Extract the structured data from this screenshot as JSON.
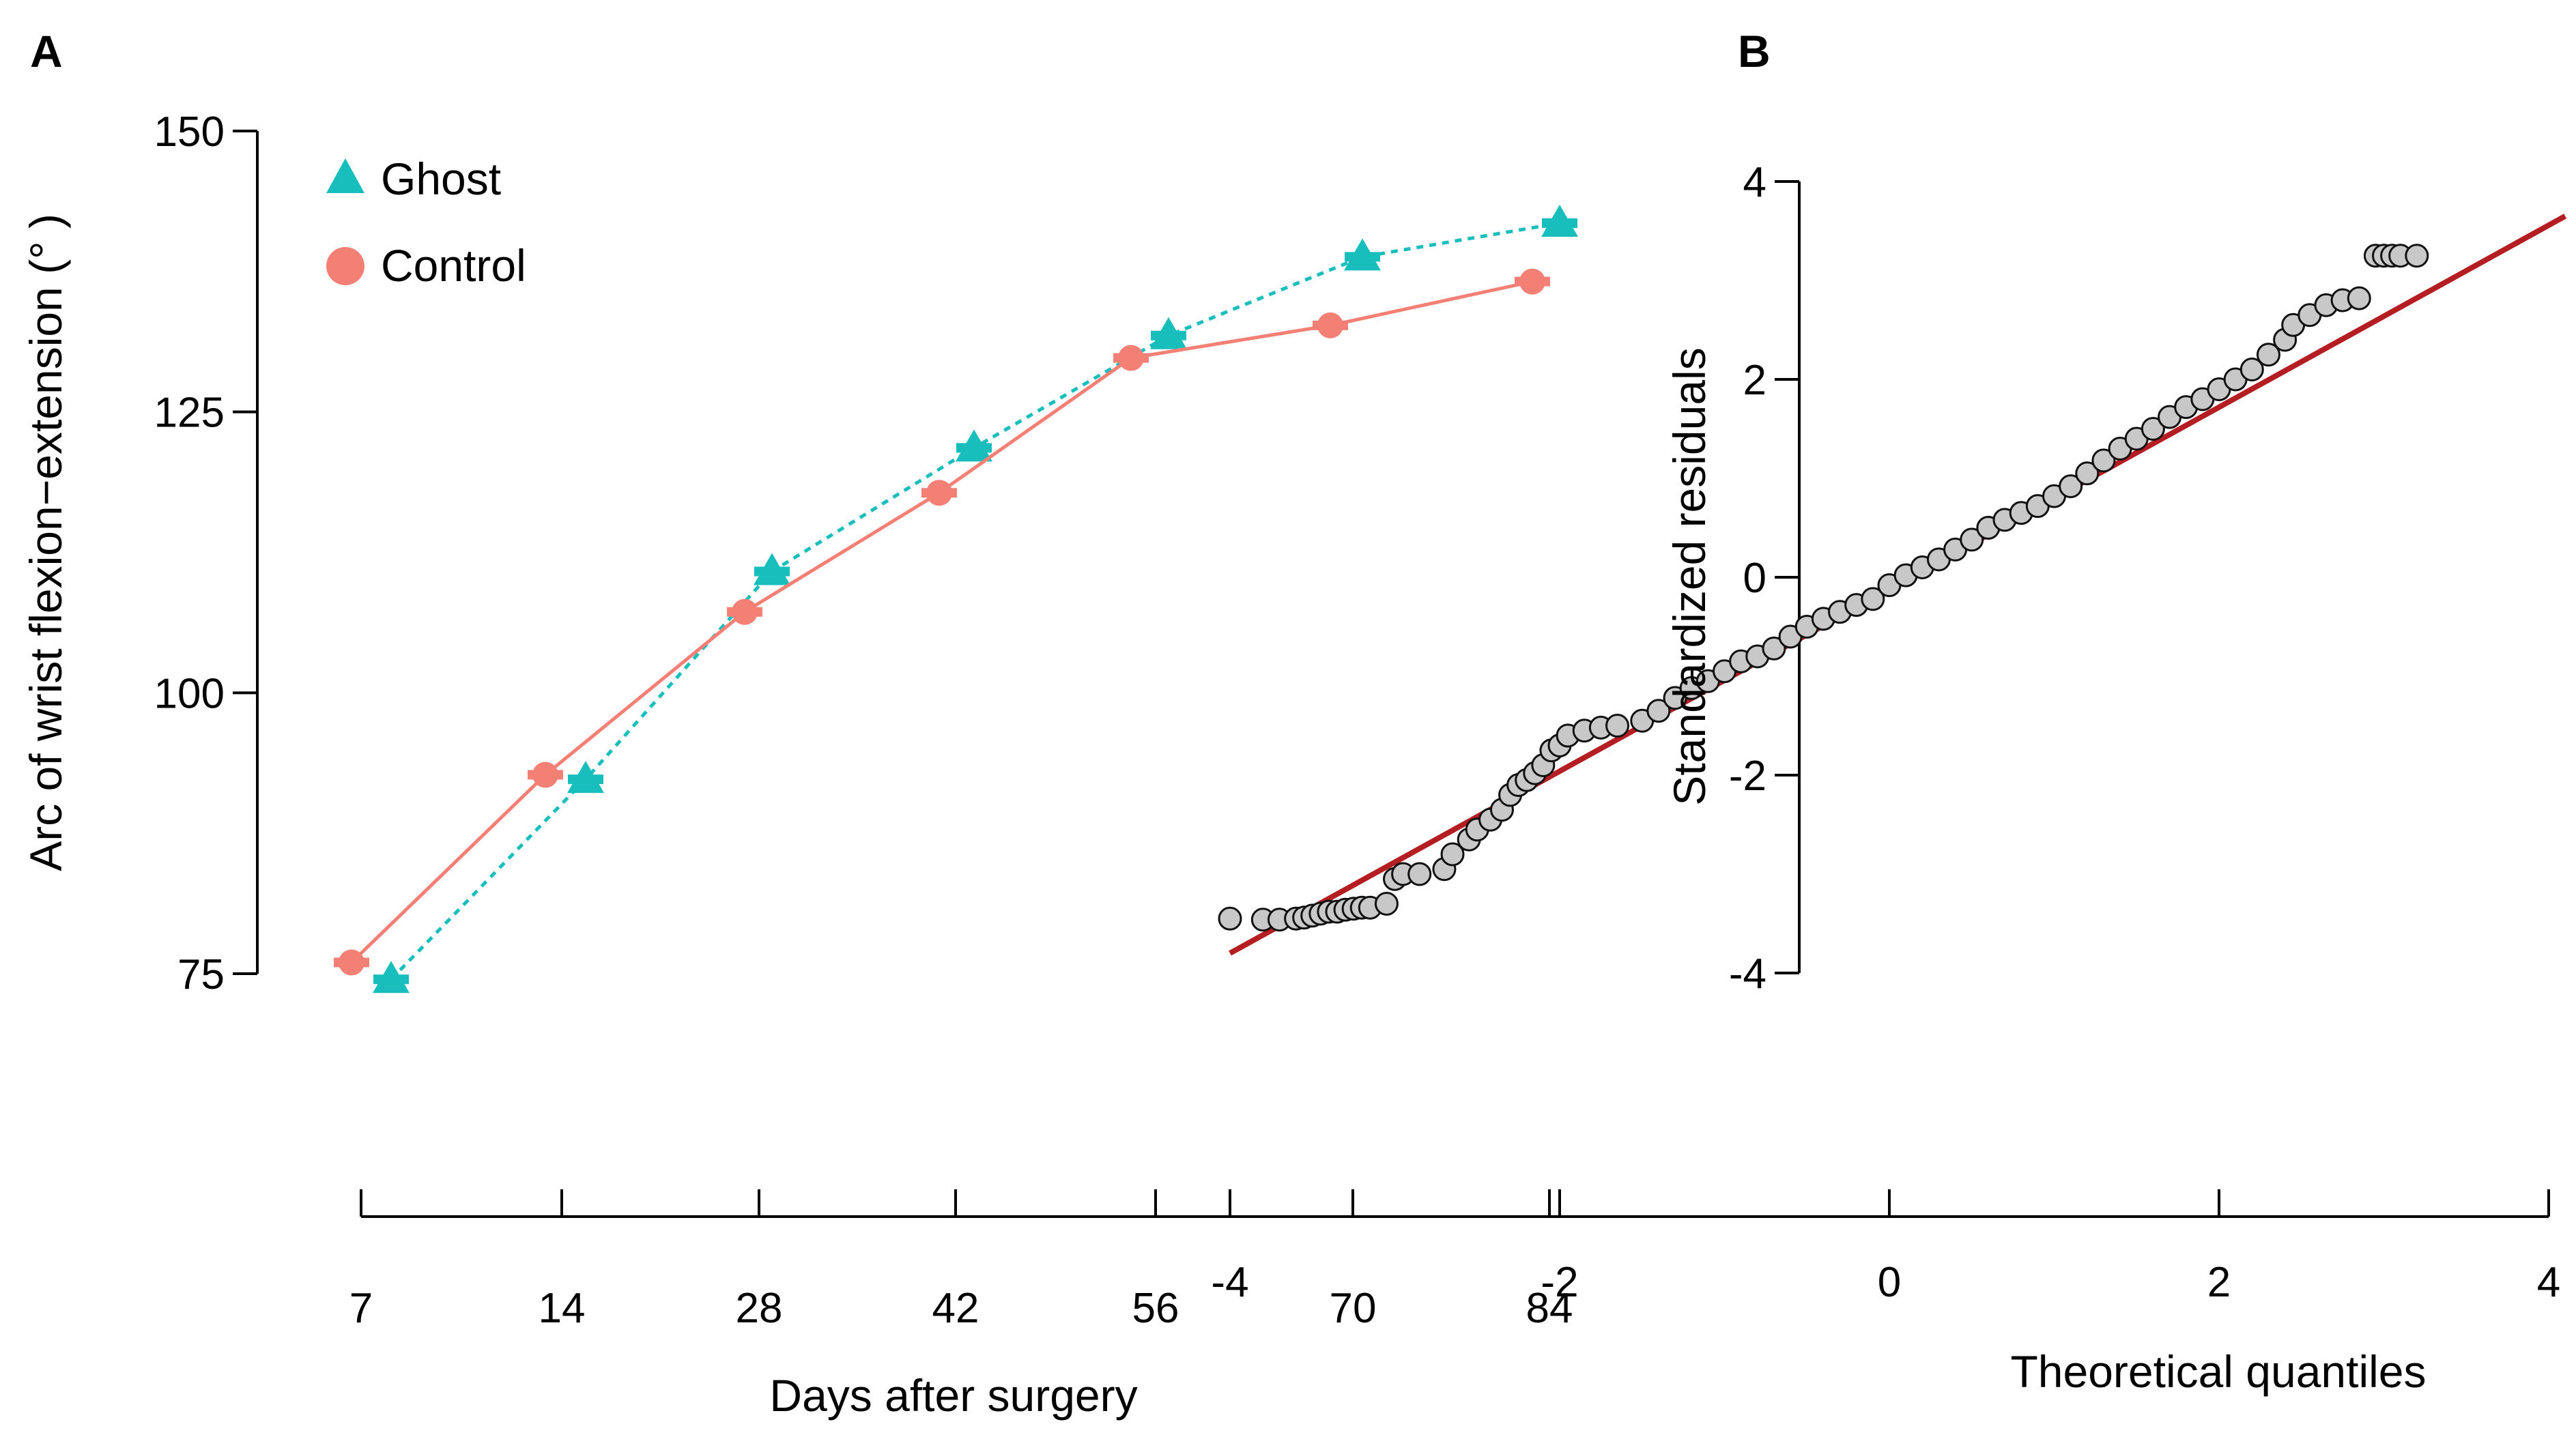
{
  "chart_data": [
    {
      "panel": "A",
      "type": "line",
      "xlabel": "Days after surgery",
      "ylabel": "Arc of wrist flexion−extension (° )",
      "yticks": [
        75,
        100,
        125,
        150
      ],
      "ylim": [
        75,
        150
      ],
      "xtick_labels": [
        "7",
        "14",
        "28",
        "42",
        "56",
        "70",
        "84"
      ],
      "legend": {
        "position": "top-left"
      },
      "series": [
        {
          "name": "Ghost",
          "color": "#17BEBB",
          "marker": "triangle",
          "line": "dotted",
          "values": [
            74.5,
            92.3,
            110.8,
            121.8,
            131.8,
            138.8,
            141.8
          ]
        },
        {
          "name": "Control",
          "color": "#F47F74",
          "marker": "circle",
          "line": "solid",
          "values": [
            76.0,
            92.7,
            107.2,
            117.8,
            129.8,
            132.7,
            136.6
          ]
        }
      ]
    },
    {
      "panel": "B",
      "type": "scatter",
      "xlabel": "Theoretical quantiles",
      "ylabel": "Standardized residuals",
      "xticks": [
        -4,
        -2,
        0,
        2,
        4
      ],
      "yticks": [
        -4,
        -2,
        0,
        2,
        4
      ],
      "xlim": [
        -4,
        4
      ],
      "ylim": [
        -4,
        4
      ],
      "reference_line": {
        "color": "#B41E23",
        "x": [
          -4.0,
          4.1
        ],
        "y": [
          -3.8,
          3.65
        ]
      },
      "points": [
        [
          -4.0,
          -3.45
        ],
        [
          -3.8,
          -3.46
        ],
        [
          -3.7,
          -3.46
        ],
        [
          -3.6,
          -3.45
        ],
        [
          -3.55,
          -3.44
        ],
        [
          -3.5,
          -3.42
        ],
        [
          -3.45,
          -3.4
        ],
        [
          -3.4,
          -3.38
        ],
        [
          -3.35,
          -3.38
        ],
        [
          -3.3,
          -3.36
        ],
        [
          -3.25,
          -3.35
        ],
        [
          -3.2,
          -3.34
        ],
        [
          -3.15,
          -3.34
        ],
        [
          -3.05,
          -3.3
        ],
        [
          -3.0,
          -3.05
        ],
        [
          -2.95,
          -3.0
        ],
        [
          -2.85,
          -3.0
        ],
        [
          -2.7,
          -2.95
        ],
        [
          -2.65,
          -2.8
        ],
        [
          -2.55,
          -2.65
        ],
        [
          -2.5,
          -2.55
        ],
        [
          -2.42,
          -2.45
        ],
        [
          -2.35,
          -2.35
        ],
        [
          -2.3,
          -2.2
        ],
        [
          -2.25,
          -2.1
        ],
        [
          -2.2,
          -2.05
        ],
        [
          -2.15,
          -1.98
        ],
        [
          -2.1,
          -1.9
        ],
        [
          -2.05,
          -1.75
        ],
        [
          -2.0,
          -1.7
        ],
        [
          -1.95,
          -1.6
        ],
        [
          -1.85,
          -1.55
        ],
        [
          -1.75,
          -1.52
        ],
        [
          -1.65,
          -1.5
        ],
        [
          -1.5,
          -1.45
        ],
        [
          -1.4,
          -1.35
        ],
        [
          -1.3,
          -1.22
        ],
        [
          -1.2,
          -1.12
        ],
        [
          -1.1,
          -1.05
        ],
        [
          -1.0,
          -0.95
        ],
        [
          -0.9,
          -0.85
        ],
        [
          -0.8,
          -0.8
        ],
        [
          -0.7,
          -0.72
        ],
        [
          -0.6,
          -0.6
        ],
        [
          -0.5,
          -0.5
        ],
        [
          -0.4,
          -0.42
        ],
        [
          -0.3,
          -0.35
        ],
        [
          -0.2,
          -0.28
        ],
        [
          -0.1,
          -0.22
        ],
        [
          0.0,
          -0.08
        ],
        [
          0.1,
          0.02
        ],
        [
          0.2,
          0.1
        ],
        [
          0.3,
          0.18
        ],
        [
          0.4,
          0.28
        ],
        [
          0.5,
          0.38
        ],
        [
          0.6,
          0.5
        ],
        [
          0.7,
          0.58
        ],
        [
          0.8,
          0.65
        ],
        [
          0.9,
          0.72
        ],
        [
          1.0,
          0.82
        ],
        [
          1.1,
          0.92
        ],
        [
          1.2,
          1.05
        ],
        [
          1.3,
          1.18
        ],
        [
          1.4,
          1.3
        ],
        [
          1.5,
          1.4
        ],
        [
          1.6,
          1.5
        ],
        [
          1.7,
          1.62
        ],
        [
          1.8,
          1.72
        ],
        [
          1.9,
          1.8
        ],
        [
          2.0,
          1.9
        ],
        [
          2.1,
          2.0
        ],
        [
          2.2,
          2.1
        ],
        [
          2.3,
          2.25
        ],
        [
          2.4,
          2.4
        ],
        [
          2.45,
          2.55
        ],
        [
          2.55,
          2.65
        ],
        [
          2.65,
          2.75
        ],
        [
          2.75,
          2.8
        ],
        [
          2.85,
          2.82
        ],
        [
          2.95,
          3.25
        ],
        [
          3.0,
          3.25
        ],
        [
          3.05,
          3.25
        ],
        [
          3.1,
          3.25
        ],
        [
          3.2,
          3.25
        ]
      ]
    }
  ],
  "panels": {
    "a": "A",
    "b": "B"
  }
}
